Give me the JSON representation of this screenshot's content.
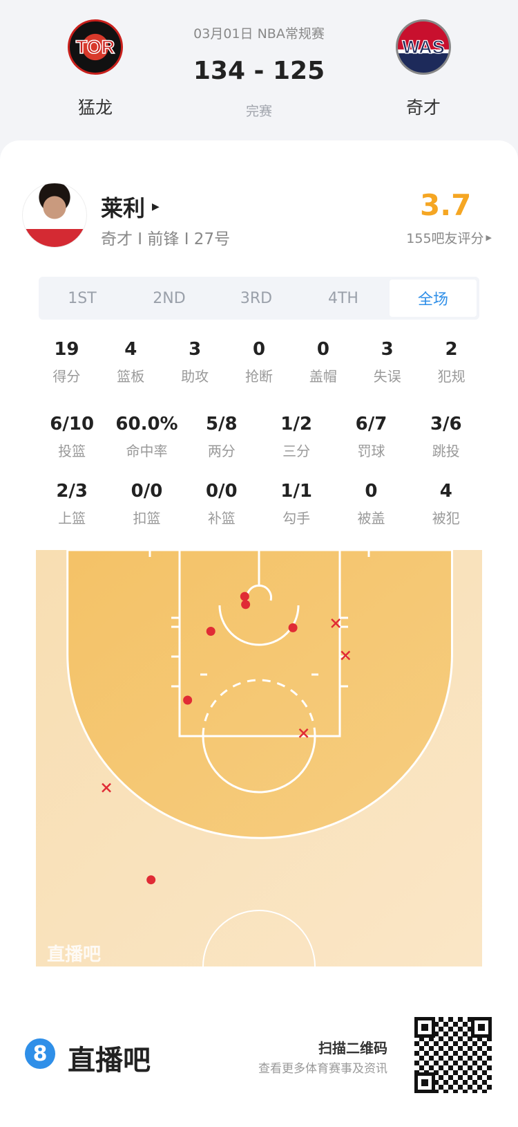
{
  "game": {
    "date_league": "03月01日 NBA常规赛",
    "score": "134 - 125",
    "status": "完赛",
    "home": {
      "abbr": "TOR",
      "name": "猛龙"
    },
    "away": {
      "abbr": "WAS",
      "name": "奇才"
    }
  },
  "player": {
    "name": "莱利",
    "info": "奇才 I 前锋 I 27号",
    "rating": "3.7",
    "rating_label": "155吧友评分",
    "rating_color": "#f5a623"
  },
  "tabs": [
    {
      "label": "1ST"
    },
    {
      "label": "2ND"
    },
    {
      "label": "3RD"
    },
    {
      "label": "4TH"
    },
    {
      "label": "全场",
      "active": true
    }
  ],
  "stats": [
    [
      {
        "v": "19",
        "l": "得分"
      },
      {
        "v": "4",
        "l": "篮板"
      },
      {
        "v": "3",
        "l": "助攻"
      },
      {
        "v": "0",
        "l": "抢断"
      },
      {
        "v": "0",
        "l": "盖帽"
      },
      {
        "v": "3",
        "l": "失误"
      },
      {
        "v": "2",
        "l": "犯规"
      }
    ],
    [
      {
        "v": "6/10",
        "l": "投篮"
      },
      {
        "v": "60.0%",
        "l": "命中率"
      },
      {
        "v": "5/8",
        "l": "两分"
      },
      {
        "v": "1/2",
        "l": "三分"
      },
      {
        "v": "6/7",
        "l": "罚球"
      },
      {
        "v": "3/6",
        "l": "跳投"
      }
    ],
    [
      {
        "v": "2/3",
        "l": "上篮"
      },
      {
        "v": "0/0",
        "l": "扣篮"
      },
      {
        "v": "0/0",
        "l": "补篮"
      },
      {
        "v": "1/1",
        "l": "勾手"
      },
      {
        "v": "0",
        "l": "被盖"
      },
      {
        "v": "4",
        "l": "被犯"
      }
    ]
  ],
  "shot_chart": {
    "watermark": "直播吧",
    "made_color": "#e02b35",
    "missed_color": "#e02b35",
    "shots": [
      {
        "x": -1.6,
        "y": -0.3,
        "made": true
      },
      {
        "x": -1.5,
        "y": 0.6,
        "made": true
      },
      {
        "x": -5.4,
        "y": 3.6,
        "made": true
      },
      {
        "x": 3.8,
        "y": 3.2,
        "made": true
      },
      {
        "x": -8.0,
        "y": 11.3,
        "made": true
      },
      {
        "x": -12.1,
        "y": 31.4,
        "made": true
      },
      {
        "x": 8.6,
        "y": 2.7,
        "made": false
      },
      {
        "x": 9.7,
        "y": 6.3,
        "made": false
      },
      {
        "x": 5.0,
        "y": 15.0,
        "made": false
      },
      {
        "x": -17.1,
        "y": 21.1,
        "made": false
      }
    ]
  },
  "footer": {
    "brand": "直播吧",
    "brand_icon": "8",
    "qr_title": "扫描二维码",
    "qr_sub": "查看更多体育赛事及资讯"
  }
}
